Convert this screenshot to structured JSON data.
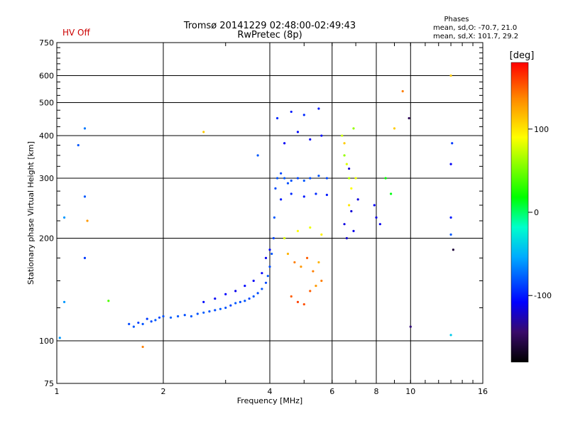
{
  "header": {
    "title_line1": "Tromsø 20141229 02:48:00-02:49:43",
    "title_line2": "RwPretec (8p)",
    "status": "HV Off",
    "status_color": "#cc0000",
    "phase_title": "Phases",
    "phase_o": "mean, sd,O: -70.7, 21.0",
    "phase_x": "mean, sd,X: 101.7, 29.2"
  },
  "chart_data": {
    "type": "scatter",
    "xlabel": "Frequency [MHz]",
    "ylabel": "Stationary phase Virtual Height [km]",
    "xscale": "log",
    "yscale": "log",
    "xlim": [
      1,
      16
    ],
    "ylim": [
      75,
      750
    ],
    "grid": true,
    "xticks": [
      1,
      2,
      4,
      6,
      8,
      10,
      16
    ],
    "yticks": [
      75,
      100,
      200,
      300,
      400,
      500,
      600,
      750
    ],
    "gridx": [
      2,
      4,
      6,
      8,
      10
    ],
    "gridy": [
      100,
      200,
      300,
      400,
      500,
      600
    ],
    "colorbar": {
      "label": "[deg]",
      "min": -180,
      "max": 180,
      "ticks": [
        100,
        0,
        -100
      ],
      "colormap": "rainbow"
    },
    "series": [
      {
        "points": [
          [
            1.6,
            112,
            -85
          ],
          [
            1.65,
            110,
            -80
          ],
          [
            1.7,
            113,
            -88
          ],
          [
            1.75,
            112,
            -82
          ],
          [
            1.8,
            116,
            -90
          ],
          [
            1.85,
            114,
            -84
          ],
          [
            1.9,
            115,
            -80
          ],
          [
            1.95,
            117,
            -86
          ],
          [
            2.0,
            118,
            -82
          ],
          [
            2.1,
            117,
            -78
          ],
          [
            2.2,
            118,
            -80
          ],
          [
            2.3,
            119,
            -84
          ],
          [
            2.4,
            118,
            -80
          ],
          [
            2.5,
            120,
            -82
          ],
          [
            2.6,
            121,
            -78
          ],
          [
            2.7,
            122,
            -80
          ],
          [
            2.8,
            123,
            -84
          ],
          [
            2.9,
            124,
            -80
          ],
          [
            3.0,
            125,
            -82
          ],
          [
            3.1,
            127,
            -86
          ],
          [
            3.2,
            129,
            -80
          ],
          [
            3.3,
            130,
            -84
          ],
          [
            3.4,
            131,
            -82
          ],
          [
            3.5,
            133,
            -86
          ],
          [
            3.6,
            135,
            -80
          ],
          [
            3.7,
            138,
            -84
          ],
          [
            3.8,
            142,
            -82
          ],
          [
            3.9,
            148,
            -86
          ],
          [
            3.95,
            155,
            -80
          ],
          [
            4.0,
            165,
            -84
          ],
          [
            4.05,
            180,
            -82
          ],
          [
            4.1,
            200,
            -86
          ],
          [
            4.12,
            230,
            -80
          ],
          [
            4.15,
            280,
            -84
          ],
          [
            4.2,
            300,
            -82
          ],
          [
            4.3,
            310,
            -86
          ],
          [
            4.4,
            300,
            -80
          ],
          [
            4.5,
            290,
            -84
          ],
          [
            4.6,
            295,
            -82
          ],
          [
            4.8,
            300,
            -86
          ],
          [
            5.0,
            295,
            -80
          ],
          [
            5.2,
            300,
            -84
          ],
          [
            5.5,
            305,
            -82
          ],
          [
            5.8,
            300,
            -86
          ],
          [
            2.6,
            130,
            -105
          ],
          [
            2.8,
            133,
            -110
          ],
          [
            3.0,
            137,
            -108
          ],
          [
            3.2,
            140,
            -112
          ],
          [
            3.4,
            145,
            -106
          ],
          [
            3.6,
            150,
            -110
          ],
          [
            3.8,
            158,
            -108
          ],
          [
            3.9,
            175,
            -112
          ],
          [
            4.0,
            185,
            -106
          ],
          [
            4.3,
            260,
            -100
          ],
          [
            4.6,
            270,
            -95
          ],
          [
            5.0,
            265,
            -100
          ],
          [
            5.4,
            270,
            -95
          ],
          [
            5.8,
            268,
            -100
          ],
          [
            4.4,
            380,
            -110
          ],
          [
            4.8,
            410,
            -105
          ],
          [
            5.2,
            390,
            -110
          ],
          [
            5.6,
            400,
            -105
          ],
          [
            4.2,
            450,
            -95
          ],
          [
            4.6,
            470,
            -100
          ],
          [
            5.0,
            460,
            -95
          ],
          [
            5.5,
            480,
            -100
          ],
          [
            4.5,
            180,
            120
          ],
          [
            4.7,
            170,
            140
          ],
          [
            4.9,
            165,
            130
          ],
          [
            5.1,
            175,
            150
          ],
          [
            5.3,
            160,
            140
          ],
          [
            5.5,
            170,
            120
          ],
          [
            4.6,
            135,
            150
          ],
          [
            4.8,
            130,
            160
          ],
          [
            5.0,
            128,
            155
          ],
          [
            5.2,
            140,
            150
          ],
          [
            5.4,
            145,
            130
          ],
          [
            5.6,
            150,
            140
          ],
          [
            4.4,
            200,
            80
          ],
          [
            4.8,
            210,
            90
          ],
          [
            5.2,
            215,
            85
          ],
          [
            5.6,
            205,
            95
          ],
          [
            6.5,
            350,
            60
          ],
          [
            6.6,
            330,
            80
          ],
          [
            6.7,
            300,
            70
          ],
          [
            6.8,
            280,
            90
          ],
          [
            6.4,
            400,
            75
          ],
          [
            6.9,
            420,
            60
          ],
          [
            6.5,
            380,
            110
          ],
          [
            6.7,
            250,
            100
          ],
          [
            7.0,
            300,
            85
          ],
          [
            6.5,
            220,
            -115
          ],
          [
            6.6,
            200,
            -120
          ],
          [
            6.8,
            240,
            -118
          ],
          [
            6.9,
            210,
            -112
          ],
          [
            7.1,
            260,
            -116
          ],
          [
            6.7,
            320,
            -120
          ],
          [
            7.9,
            250,
            -110
          ],
          [
            8.0,
            230,
            -115
          ],
          [
            8.2,
            220,
            -112
          ],
          [
            8.5,
            300,
            20
          ],
          [
            8.8,
            270,
            15
          ],
          [
            9.0,
            420,
            110
          ],
          [
            9.5,
            540,
            140
          ],
          [
            9.9,
            450,
            -150
          ],
          [
            10.0,
            110,
            -140
          ],
          [
            13.0,
            330,
            -110
          ],
          [
            13.1,
            380,
            -90
          ],
          [
            13.0,
            230,
            -100
          ],
          [
            13.0,
            205,
            -80
          ],
          [
            13.2,
            185,
            -160
          ],
          [
            13.0,
            600,
            110
          ],
          [
            13.0,
            104,
            -40
          ],
          [
            1.02,
            102,
            -60
          ],
          [
            1.05,
            230,
            -60
          ],
          [
            1.15,
            375,
            -80
          ],
          [
            1.2,
            420,
            -70
          ],
          [
            1.2,
            265,
            -80
          ],
          [
            1.22,
            225,
            130
          ],
          [
            1.2,
            175,
            -90
          ],
          [
            1.05,
            130,
            -60
          ],
          [
            1.4,
            131,
            40
          ],
          [
            1.75,
            96,
            140
          ],
          [
            2.6,
            410,
            110
          ],
          [
            3.7,
            350,
            -80
          ]
        ]
      }
    ]
  }
}
